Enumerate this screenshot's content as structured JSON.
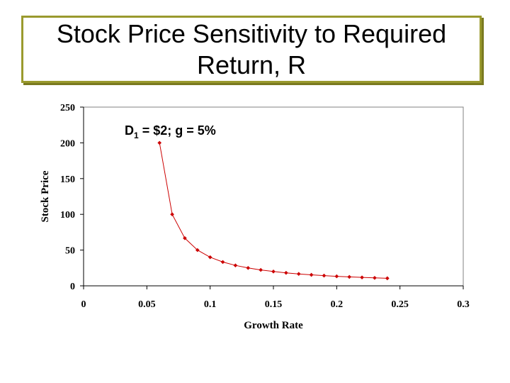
{
  "slide": {
    "title": "Stock Price Sensitivity to Required Return, R"
  },
  "chart_data": {
    "type": "line",
    "title": "",
    "xlabel": "Growth Rate",
    "ylabel": "Stock Price",
    "xlim": [
      0,
      0.3
    ],
    "ylim": [
      0,
      250
    ],
    "x_ticks": [
      "0",
      "0.05",
      "0.1",
      "0.15",
      "0.2",
      "0.25",
      "0.3"
    ],
    "y_ticks": [
      "0",
      "50",
      "100",
      "150",
      "200",
      "250"
    ],
    "annotation": {
      "main": "D",
      "sub": "1",
      "rest": " = $2; g = 5%"
    },
    "grid": false,
    "legend": "none",
    "colors": {
      "series": "#cc0000",
      "axes": "#000000",
      "plot_border": "#808080"
    },
    "series": [
      {
        "x": [
          0.06,
          0.07,
          0.08,
          0.09,
          0.1,
          0.11,
          0.12,
          0.13,
          0.14,
          0.15,
          0.16,
          0.17,
          0.18,
          0.19,
          0.2,
          0.21,
          0.22,
          0.23,
          0.24
        ],
        "y": [
          200,
          100,
          66.67,
          50,
          40,
          33.33,
          28.57,
          25,
          22.22,
          20,
          18.18,
          16.67,
          15.38,
          14.29,
          13.33,
          12.5,
          11.76,
          11.11,
          10.53
        ]
      }
    ]
  }
}
